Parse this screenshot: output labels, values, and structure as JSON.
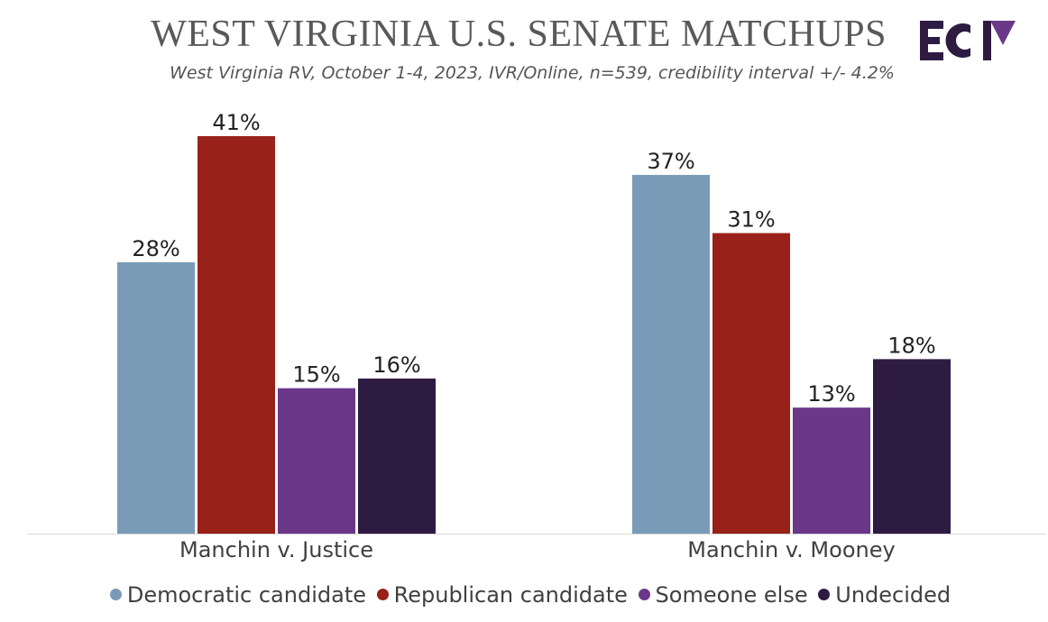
{
  "header": {
    "title": "WEST VIRGINIA U.S. SENATE MATCHUPS",
    "subtitle": "West Virginia RV, October 1-4, 2023, IVR/Online, n=539, credibility interval +/- 4.2%",
    "logo_text": "ECP"
  },
  "chart_data": {
    "type": "bar",
    "title": "WEST VIRGINIA U.S. SENATE MATCHUPS",
    "xlabel": "",
    "ylabel": "",
    "ylim": [
      0,
      45
    ],
    "grid": false,
    "legend_position": "bottom",
    "categories": [
      "Manchin v. Justice",
      "Manchin v. Mooney"
    ],
    "series": [
      {
        "name": "Democratic candidate",
        "color": "#7a9bb8",
        "values": [
          28,
          37
        ],
        "labels": [
          "28%",
          "37%"
        ]
      },
      {
        "name": "Republican candidate",
        "color": "#982119",
        "values": [
          41,
          31
        ],
        "labels": [
          "41%",
          "31%"
        ]
      },
      {
        "name": "Someone else",
        "color": "#6b3789",
        "values": [
          15,
          13
        ],
        "labels": [
          "15%",
          "13%"
        ]
      },
      {
        "name": "Undecided",
        "color": "#2e1b42",
        "values": [
          16,
          18
        ],
        "labels": [
          "16%",
          "18%"
        ]
      }
    ]
  }
}
